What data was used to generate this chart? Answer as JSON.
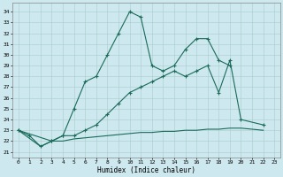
{
  "xlabel": "Humidex (Indice chaleur)",
  "ylabel": "",
  "xlim": [
    -0.5,
    23.5
  ],
  "ylim": [
    20.5,
    34.8
  ],
  "yticks": [
    21,
    22,
    23,
    24,
    25,
    26,
    27,
    28,
    29,
    30,
    31,
    32,
    33,
    34
  ],
  "xticks": [
    0,
    1,
    2,
    3,
    4,
    5,
    6,
    7,
    8,
    9,
    10,
    11,
    12,
    13,
    14,
    15,
    16,
    17,
    18,
    19,
    20,
    21,
    22,
    23
  ],
  "bg_color": "#cde8ee",
  "grid_color": "#aacccc",
  "line_color": "#1a6b5a",
  "line1_x": [
    0,
    1,
    2,
    3,
    4,
    5,
    6,
    7,
    8,
    9,
    10,
    11,
    12,
    13,
    14,
    15,
    16,
    17,
    18,
    19
  ],
  "line1_y": [
    23.0,
    22.5,
    21.5,
    22.0,
    22.5,
    25.0,
    27.5,
    28.0,
    30.0,
    32.0,
    34.0,
    33.5,
    29.0,
    28.5,
    29.0,
    30.5,
    31.5,
    31.5,
    29.5,
    29.0
  ],
  "line2_x": [
    0,
    3,
    4,
    5,
    6,
    7,
    8,
    9,
    10,
    11,
    12,
    13,
    14,
    15,
    16,
    17,
    18,
    19,
    20,
    22
  ],
  "line2_y": [
    23.0,
    22.0,
    22.5,
    22.5,
    23.0,
    23.5,
    24.5,
    25.5,
    26.5,
    27.0,
    27.5,
    28.0,
    28.5,
    28.0,
    28.5,
    29.0,
    26.5,
    29.5,
    24.0,
    23.5
  ],
  "line3_x": [
    0,
    2,
    3,
    4,
    5,
    6,
    7,
    8,
    9,
    10,
    11,
    12,
    13,
    14,
    15,
    16,
    17,
    18,
    19,
    20,
    22
  ],
  "line3_y": [
    23.0,
    21.5,
    22.0,
    22.0,
    22.2,
    22.3,
    22.4,
    22.5,
    22.6,
    22.7,
    22.8,
    22.8,
    22.9,
    22.9,
    23.0,
    23.0,
    23.1,
    23.1,
    23.2,
    23.2,
    23.0
  ]
}
